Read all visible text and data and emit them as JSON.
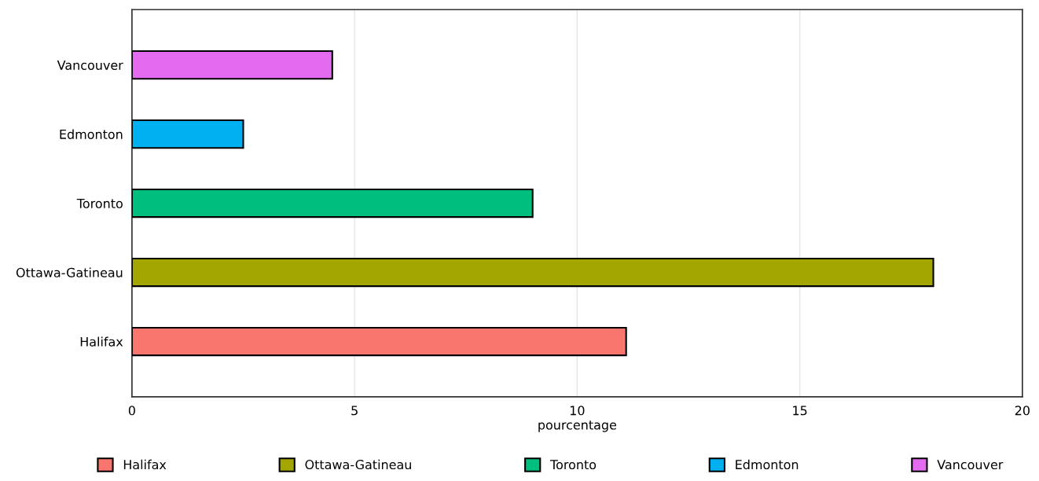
{
  "chart_data": {
    "type": "bar",
    "orientation": "horizontal",
    "xlabel": "pourcentage",
    "categories": [
      "Vancouver",
      "Edmonton",
      "Toronto",
      "Ottawa-Gatineau",
      "Halifax"
    ],
    "series": [
      {
        "name": "Halifax",
        "color": "#f8766d",
        "values": [
          null,
          null,
          null,
          null,
          11.1
        ]
      },
      {
        "name": "Ottawa-Gatineau",
        "color": "#a3a500",
        "values": [
          null,
          null,
          null,
          18.0,
          null
        ]
      },
      {
        "name": "Toronto",
        "color": "#00be7d",
        "values": [
          null,
          null,
          9.0,
          null,
          null
        ]
      },
      {
        "name": "Edmonton",
        "color": "#00b0f0",
        "values": [
          null,
          2.5,
          null,
          null,
          null
        ]
      },
      {
        "name": "Vancouver",
        "color": "#e36bef",
        "values": [
          4.5,
          null,
          null,
          null,
          null
        ]
      }
    ],
    "xlim": [
      0,
      20
    ],
    "xticks": [
      0,
      5,
      10,
      15,
      20
    ],
    "grid": "x",
    "legend": "bottom"
  }
}
